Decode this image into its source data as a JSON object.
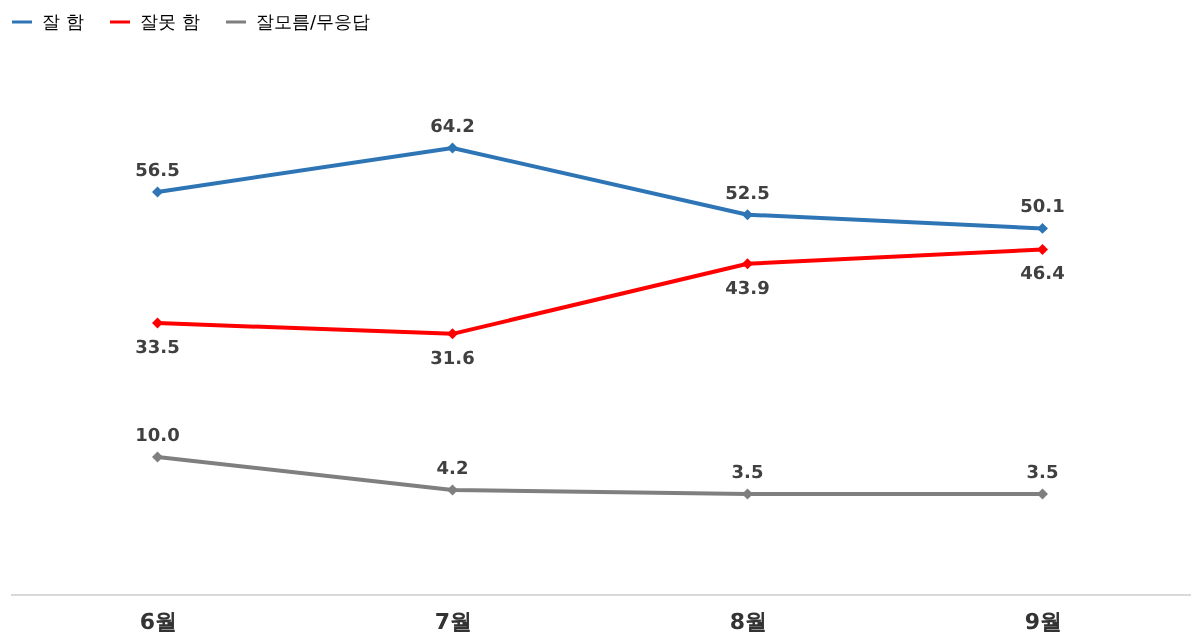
{
  "chart_data": {
    "type": "line",
    "categories": [
      "6월",
      "7월",
      "8월",
      "9월"
    ],
    "series": [
      {
        "name": "잘 함",
        "color": "#2e75b6",
        "values": [
          56.5,
          64.2,
          52.5,
          50.1
        ]
      },
      {
        "name": "잘못 함",
        "color": "#ff0000",
        "values": [
          33.5,
          31.6,
          43.9,
          46.4
        ]
      },
      {
        "name": "잘모름/무응답",
        "color": "#7f7f7f",
        "values": [
          10.0,
          4.2,
          3.5,
          3.5
        ],
        "value_labels": [
          "10.0",
          "4.2",
          "3.5",
          "3.5"
        ]
      }
    ],
    "data_labels": true,
    "legend": "top",
    "marker": "diamond",
    "line_style": "solid",
    "grid": false,
    "tick_labels": "x"
  }
}
